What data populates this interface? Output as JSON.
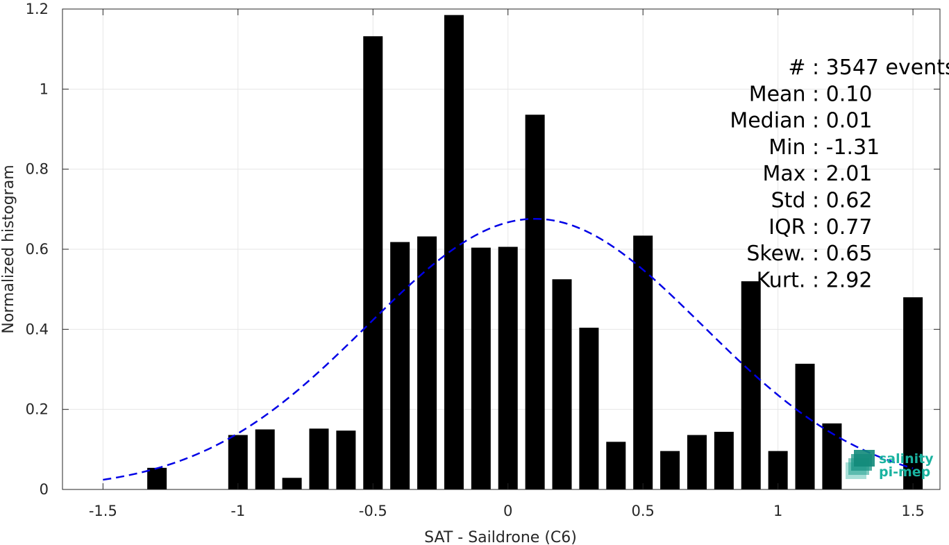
{
  "chart_data": {
    "type": "bar",
    "xlabel": "SAT - Saildrone (C6)",
    "ylabel": "Normalized histogram",
    "xlim": [
      -1.65,
      1.6
    ],
    "ylim": [
      0,
      1.2
    ],
    "xticks": [
      -1.5,
      -1,
      -0.5,
      0,
      0.5,
      1,
      1.5
    ],
    "xtick_labels": [
      "-1.5",
      "-1",
      "-0.5",
      "0",
      "0.5",
      "1",
      "1.5"
    ],
    "yticks": [
      0,
      0.2,
      0.4,
      0.6,
      0.8,
      1,
      1.2
    ],
    "ytick_labels": [
      "0",
      "0.2",
      "0.4",
      "0.6",
      "0.8",
      "1",
      "1.2"
    ],
    "grid": true,
    "bar_width": 0.072,
    "x": [
      -1.3,
      -1.0,
      -0.9,
      -0.8,
      -0.7,
      -0.6,
      -0.5,
      -0.4,
      -0.3,
      -0.2,
      -0.1,
      0.0,
      0.1,
      0.2,
      0.3,
      0.4,
      0.5,
      0.6,
      0.7,
      0.8,
      0.9,
      1.0,
      1.1,
      1.2,
      1.5
    ],
    "values": [
      0.054,
      0.136,
      0.15,
      0.029,
      0.152,
      0.147,
      1.132,
      0.618,
      0.632,
      1.185,
      0.604,
      0.606,
      0.936,
      0.525,
      0.404,
      0.119,
      0.634,
      0.096,
      0.136,
      0.144,
      0.52,
      0.096,
      0.314,
      0.165,
      0.48
    ],
    "bar_color": "#000000",
    "fit": {
      "type": "normal",
      "mean": 0.1,
      "std": 0.62,
      "amplitude": 0.676,
      "range": [
        -1.5,
        1.5
      ],
      "color": "#0000e6",
      "style": "dashed"
    },
    "stats": [
      "#  : 3547 events",
      "Mean : 0.10",
      "Median : 0.01",
      "Min : -1.31",
      "Max : 2.01",
      "Std : 0.62",
      "IQR : 0.77",
      "Skew. : 0.65",
      "Kurt. : 2.92"
    ]
  },
  "logo": {
    "line1": "salinity",
    "line2": "pi-mep",
    "color": "#1ab3a0"
  }
}
